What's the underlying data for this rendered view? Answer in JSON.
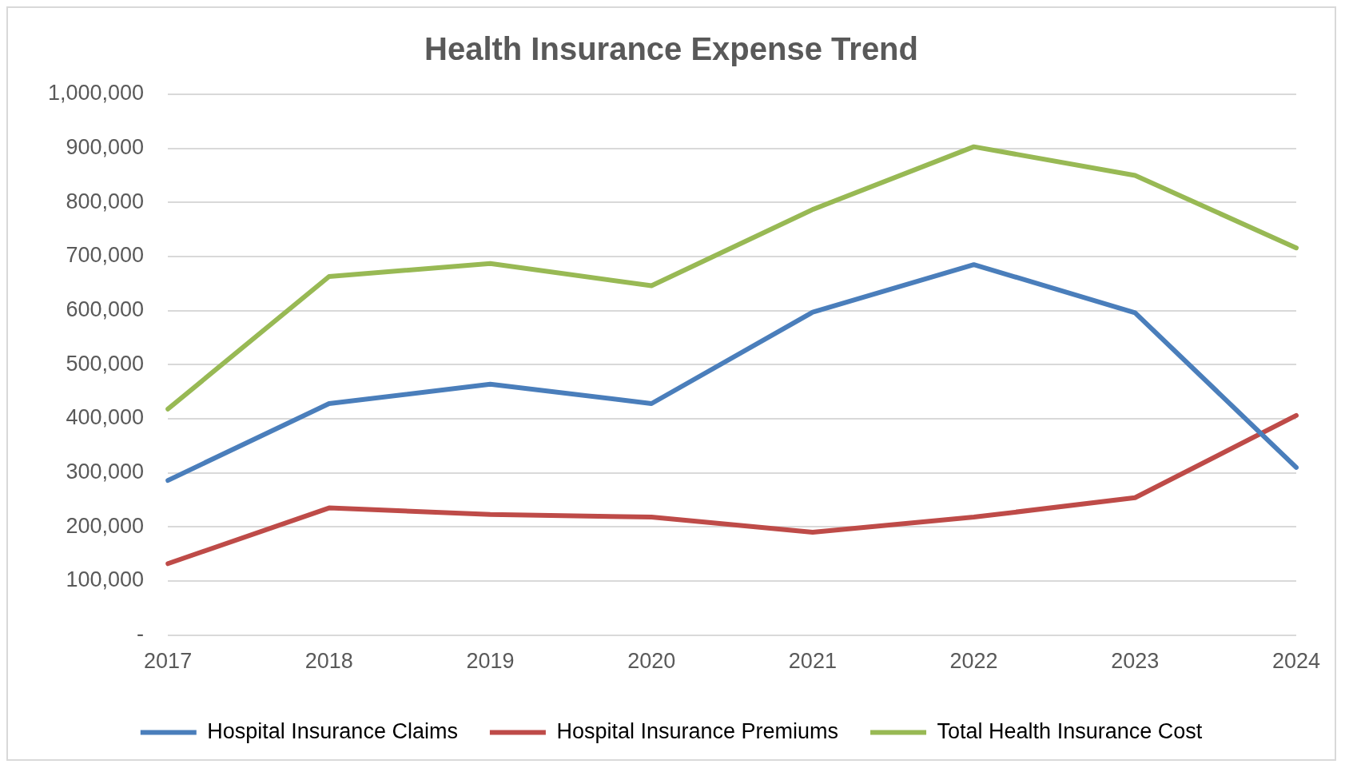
{
  "chart_data": {
    "type": "line",
    "title": "Health Insurance Expense Trend",
    "categories": [
      "2017",
      "2018",
      "2019",
      "2020",
      "2021",
      "2022",
      "2023",
      "2024"
    ],
    "series": [
      {
        "name": "Hospital Insurance Claims",
        "color": "#4a7ebb",
        "values": [
          286000,
          428000,
          464000,
          428000,
          597000,
          685000,
          596000,
          310000
        ]
      },
      {
        "name": "Hospital Insurance Premiums",
        "color": "#be4b48",
        "values": [
          132000,
          235000,
          223000,
          218000,
          190000,
          218000,
          254000,
          406000
        ]
      },
      {
        "name": "Total Health Insurance Cost",
        "color": "#98b954",
        "values": [
          418000,
          663000,
          687000,
          646000,
          787000,
          903000,
          850000,
          716000
        ]
      }
    ],
    "ylim": [
      0,
      1000000
    ],
    "yticks": [
      {
        "value": 0,
        "label": "-"
      },
      {
        "value": 100000,
        "label": "100,000"
      },
      {
        "value": 200000,
        "label": "200,000"
      },
      {
        "value": 300000,
        "label": "300,000"
      },
      {
        "value": 400000,
        "label": "400,000"
      },
      {
        "value": 500000,
        "label": "500,000"
      },
      {
        "value": 600000,
        "label": "600,000"
      },
      {
        "value": 700000,
        "label": "700,000"
      },
      {
        "value": 800000,
        "label": "800,000"
      },
      {
        "value": 900000,
        "label": "900,000"
      },
      {
        "value": 1000000,
        "label": "1,000,000"
      }
    ],
    "grid": "y",
    "legend": "bottom",
    "marker": "none",
    "line_style": "solid"
  }
}
